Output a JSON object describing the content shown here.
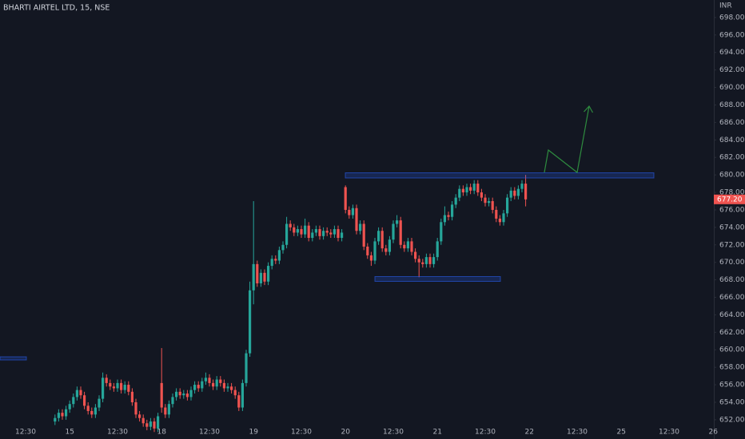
{
  "chart_data": {
    "type": "candlestick",
    "title": "BHARTI AIRTEL LTD, 15, NSE",
    "y_axis_label": "INR",
    "up_color": "#26a69a",
    "down_color": "#ef5350",
    "categories": [
      "12:30",
      null,
      null,
      null,
      null,
      null,
      null,
      null,
      null,
      null,
      null,
      null,
      "15",
      null,
      null,
      null,
      null,
      null,
      null,
      null,
      null,
      null,
      null,
      null,
      null,
      "12:30",
      null,
      null,
      null,
      null,
      null,
      null,
      null,
      null,
      null,
      null,
      null,
      "18",
      null,
      null,
      null,
      null,
      null,
      null,
      null,
      null,
      null,
      null,
      null,
      null,
      "12:30",
      null,
      null,
      null,
      null,
      null,
      null,
      null,
      null,
      null,
      null,
      null,
      "19",
      null,
      null,
      null,
      null,
      null,
      null,
      null,
      null,
      null,
      null,
      null,
      null,
      "12:30",
      null,
      null,
      null,
      null,
      null,
      null,
      null,
      null,
      null,
      null,
      null,
      "20",
      null,
      null,
      null,
      null,
      null,
      null,
      null,
      null,
      null,
      null,
      null,
      null,
      "12:30",
      null,
      null,
      null,
      null,
      null,
      null,
      null,
      null,
      null,
      null,
      null,
      "21",
      null,
      null,
      null,
      null,
      null,
      null,
      null,
      null,
      null,
      null,
      null,
      null,
      "12:30",
      null,
      null,
      null,
      null,
      null,
      null,
      null,
      null,
      null,
      null,
      null,
      "22",
      null,
      null,
      null,
      null,
      null,
      null,
      null,
      null,
      null,
      null,
      null,
      null,
      "12:30",
      null,
      null,
      null,
      null,
      null,
      null,
      null,
      null,
      null,
      null,
      null,
      "25",
      null,
      null,
      null,
      null,
      null,
      null,
      null,
      null,
      null,
      null,
      null,
      null,
      "12:30",
      null,
      null,
      null,
      null,
      null,
      null,
      null,
      null,
      null,
      null,
      null,
      "26"
    ],
    "open": [
      null,
      null,
      null,
      null,
      null,
      null,
      null,
      null,
      651.8,
      652.2,
      652.8,
      652.4,
      653.2,
      653.8,
      654.6,
      655.4,
      654.8,
      653.6,
      653.0,
      652.6,
      653.4,
      654.4,
      656.8,
      656.2,
      655.8,
      655.6,
      656.2,
      655.4,
      656.0,
      655.2,
      654.0,
      652.6,
      652.2,
      651.6,
      651.2,
      651.8,
      651.0,
      656.2,
      653.4,
      652.6,
      653.8,
      654.6,
      655.2,
      654.8,
      655.0,
      654.6,
      655.4,
      656.0,
      655.6,
      656.4,
      656.8,
      656.2,
      655.8,
      656.6,
      656.2,
      655.6,
      655.8,
      655.4,
      654.8,
      653.4,
      656.2,
      659.6,
      666.8,
      669.8,
      667.6,
      668.8,
      667.8,
      669.6,
      670.4,
      670.2,
      671.4,
      672.0,
      674.4,
      674.0,
      673.4,
      673.8,
      673.2,
      674.2,
      672.8,
      673.4,
      673.8,
      673.0,
      673.6,
      673.4,
      673.2,
      673.8,
      672.8,
      678.6,
      676.0,
      675.4,
      676.2,
      673.6,
      674.4,
      671.8,
      670.8,
      670.2,
      672.4,
      673.6,
      671.6,
      671.2,
      672.6,
      674.4,
      674.8,
      672.0,
      671.6,
      672.4,
      671.2,
      670.4,
      670.0,
      669.8,
      670.6,
      669.8,
      670.6,
      672.4,
      674.6,
      675.4,
      675.2,
      676.6,
      677.4,
      678.4,
      678.0,
      678.6,
      678.2,
      679.0,
      678.0,
      677.4,
      676.8,
      677.0,
      676.0,
      675.0,
      674.6,
      675.6,
      677.4,
      678.2,
      677.6,
      678.4,
      679.0,
      null,
      null,
      null,
      null,
      null,
      null,
      null,
      null,
      null,
      null,
      null,
      null,
      null,
      null,
      null,
      null,
      null,
      null,
      null,
      null,
      null,
      null,
      null,
      null,
      null,
      null,
      null,
      null,
      null,
      null,
      null,
      null,
      null,
      null,
      null,
      null,
      null,
      null,
      null,
      null,
      null,
      null,
      null,
      null,
      null,
      null,
      null,
      null,
      null,
      null,
      null
    ],
    "high": [
      null,
      null,
      null,
      null,
      null,
      null,
      null,
      null,
      652.6,
      653.2,
      653.2,
      653.6,
      654.2,
      655.0,
      655.8,
      655.8,
      655.2,
      654.0,
      653.4,
      653.8,
      654.8,
      657.4,
      657.2,
      656.6,
      656.2,
      656.6,
      656.6,
      656.4,
      656.4,
      655.6,
      654.4,
      653.0,
      652.6,
      652.0,
      652.2,
      652.2,
      652.8,
      660.2,
      653.8,
      654.2,
      655.0,
      655.6,
      655.6,
      655.4,
      655.4,
      655.8,
      656.4,
      656.4,
      656.8,
      657.4,
      657.2,
      656.6,
      657.0,
      657.0,
      656.6,
      656.2,
      656.2,
      655.8,
      655.2,
      656.6,
      660.0,
      667.8,
      677.0,
      670.2,
      669.2,
      669.2,
      670.0,
      670.8,
      670.8,
      671.8,
      672.4,
      675.2,
      674.8,
      674.4,
      674.2,
      674.2,
      675.0,
      674.6,
      673.8,
      674.2,
      674.2,
      674.0,
      674.0,
      673.8,
      674.2,
      674.2,
      673.8,
      678.8,
      676.4,
      676.6,
      676.6,
      674.8,
      674.8,
      672.2,
      671.2,
      672.8,
      674.0,
      674.0,
      672.0,
      673.0,
      674.8,
      675.4,
      675.2,
      672.4,
      672.8,
      672.8,
      671.6,
      670.8,
      670.4,
      671.0,
      671.0,
      671.0,
      672.8,
      675.0,
      676.4,
      675.8,
      677.0,
      677.8,
      678.8,
      678.8,
      679.0,
      679.0,
      679.4,
      679.4,
      678.4,
      677.8,
      677.4,
      677.4,
      676.4,
      675.4,
      676.0,
      677.8,
      678.6,
      678.6,
      678.8,
      679.4,
      680.0,
      null,
      null,
      null,
      null,
      null,
      null,
      null,
      null,
      null,
      null,
      null,
      null,
      null,
      null,
      null,
      null,
      null,
      null,
      null,
      null,
      null,
      null,
      null,
      null,
      null,
      null,
      null,
      null,
      null,
      null,
      null,
      null,
      null,
      null,
      null,
      null,
      null,
      null,
      null,
      null,
      null,
      null,
      null,
      null,
      null,
      null,
      null,
      null,
      null,
      null,
      null
    ],
    "low": [
      null,
      null,
      null,
      null,
      null,
      null,
      null,
      null,
      651.4,
      651.8,
      652.0,
      652.0,
      652.8,
      653.4,
      654.2,
      654.4,
      653.2,
      652.6,
      652.2,
      652.2,
      653.0,
      654.0,
      655.8,
      655.4,
      655.2,
      655.2,
      655.0,
      655.0,
      654.8,
      653.6,
      652.2,
      651.8,
      651.2,
      650.8,
      650.8,
      650.6,
      650.6,
      652.8,
      652.2,
      652.2,
      653.4,
      654.2,
      654.4,
      654.4,
      654.2,
      654.2,
      655.0,
      655.2,
      655.2,
      656.0,
      655.8,
      655.4,
      655.4,
      655.8,
      655.2,
      655.2,
      655.0,
      654.4,
      653.0,
      653.0,
      655.8,
      659.2,
      665.2,
      667.2,
      667.2,
      667.4,
      667.4,
      669.2,
      669.8,
      669.8,
      671.0,
      671.6,
      673.6,
      673.0,
      673.0,
      672.8,
      672.8,
      672.4,
      672.4,
      673.0,
      672.6,
      672.6,
      673.0,
      672.8,
      672.8,
      672.4,
      672.4,
      675.6,
      675.0,
      675.0,
      673.2,
      673.2,
      671.4,
      670.4,
      669.6,
      669.8,
      672.0,
      671.2,
      670.8,
      670.8,
      672.2,
      674.0,
      671.6,
      671.2,
      671.2,
      670.8,
      670.0,
      668.3,
      669.4,
      669.4,
      669.4,
      669.4,
      670.2,
      672.0,
      674.2,
      674.8,
      674.8,
      676.2,
      677.0,
      677.6,
      677.6,
      677.8,
      677.8,
      677.6,
      677.0,
      676.4,
      676.4,
      675.6,
      674.6,
      674.2,
      674.2,
      675.2,
      677.0,
      677.2,
      677.2,
      678.0,
      676.4,
      null,
      null,
      null,
      null,
      null,
      null,
      null,
      null,
      null,
      null,
      null,
      null,
      null,
      null,
      null,
      null,
      null,
      null,
      null,
      null,
      null,
      null,
      null,
      null,
      null,
      null,
      null,
      null,
      null,
      null,
      null,
      null,
      null,
      null,
      null,
      null,
      null,
      null,
      null,
      null,
      null,
      null,
      null,
      null,
      null,
      null,
      null,
      null,
      null,
      null,
      null
    ],
    "close": [
      null,
      null,
      null,
      null,
      null,
      null,
      null,
      null,
      652.2,
      652.8,
      652.4,
      653.2,
      653.8,
      654.6,
      655.4,
      654.8,
      653.6,
      653.0,
      652.6,
      653.4,
      654.4,
      656.8,
      656.2,
      655.8,
      655.6,
      656.2,
      655.4,
      656.0,
      655.2,
      654.0,
      652.6,
      652.2,
      651.6,
      651.2,
      651.8,
      651.0,
      652.4,
      653.4,
      652.6,
      653.8,
      654.6,
      655.2,
      654.8,
      655.0,
      654.6,
      655.4,
      656.0,
      655.6,
      656.4,
      656.8,
      656.2,
      655.8,
      656.6,
      656.2,
      655.6,
      655.8,
      655.4,
      654.8,
      653.4,
      656.2,
      659.6,
      666.8,
      669.8,
      667.6,
      668.8,
      667.8,
      669.6,
      670.4,
      670.2,
      671.4,
      672.0,
      674.4,
      674.0,
      673.4,
      673.8,
      673.2,
      674.2,
      672.8,
      673.4,
      673.8,
      673.0,
      673.6,
      673.4,
      673.2,
      673.8,
      672.8,
      673.4,
      676.0,
      675.4,
      676.2,
      673.6,
      674.4,
      671.8,
      670.8,
      670.2,
      672.4,
      673.6,
      671.6,
      671.2,
      672.6,
      674.4,
      674.8,
      672.0,
      671.6,
      672.4,
      671.2,
      670.4,
      670.0,
      669.8,
      670.6,
      669.8,
      670.6,
      672.4,
      674.6,
      675.4,
      675.2,
      676.6,
      677.4,
      678.4,
      678.0,
      678.6,
      678.2,
      679.0,
      678.0,
      677.4,
      676.8,
      677.0,
      676.0,
      675.0,
      674.6,
      675.6,
      677.4,
      678.2,
      677.6,
      678.4,
      679.0,
      677.2,
      null,
      null,
      null,
      null,
      null,
      null,
      null,
      null,
      null,
      null,
      null,
      null,
      null,
      null,
      null,
      null,
      null,
      null,
      null,
      null,
      null,
      null,
      null,
      null,
      null,
      null,
      null,
      null,
      null,
      null,
      null,
      null,
      null,
      null,
      null,
      null,
      null,
      null,
      null,
      null,
      null,
      null,
      null,
      null,
      null,
      null,
      null,
      null,
      null,
      null,
      null
    ],
    "ylim": [
      649.8,
      700.0
    ],
    "yticks": [
      {
        "value": 652,
        "label": "652.00"
      },
      {
        "value": 654,
        "label": "654.00"
      },
      {
        "value": 656,
        "label": "656.00"
      },
      {
        "value": 658,
        "label": "658.00"
      },
      {
        "value": 660,
        "label": "660.00"
      },
      {
        "value": 662,
        "label": "662.00"
      },
      {
        "value": 664,
        "label": "664.00"
      },
      {
        "value": 666,
        "label": "666.00"
      },
      {
        "value": 668,
        "label": "668.00"
      },
      {
        "value": 670,
        "label": "670.00"
      },
      {
        "value": 672,
        "label": "672.00"
      },
      {
        "value": 674,
        "label": "674.00"
      },
      {
        "value": 676,
        "label": "676.00"
      },
      {
        "value": 678,
        "label": "678.00"
      },
      {
        "value": 680,
        "label": "680.00"
      },
      {
        "value": 682,
        "label": "682.00"
      },
      {
        "value": 684,
        "label": "684.00"
      },
      {
        "value": 686,
        "label": "686.00"
      },
      {
        "value": 688,
        "label": "688.00"
      },
      {
        "value": 690,
        "label": "690.00"
      },
      {
        "value": 692,
        "label": "692.00"
      },
      {
        "value": 694,
        "label": "694.00"
      },
      {
        "value": 696,
        "label": "696.00"
      },
      {
        "value": 698,
        "label": "698.00"
      }
    ],
    "last_price": {
      "value": 677.2,
      "label": "677.20",
      "color": "#ef5350"
    }
  }
}
